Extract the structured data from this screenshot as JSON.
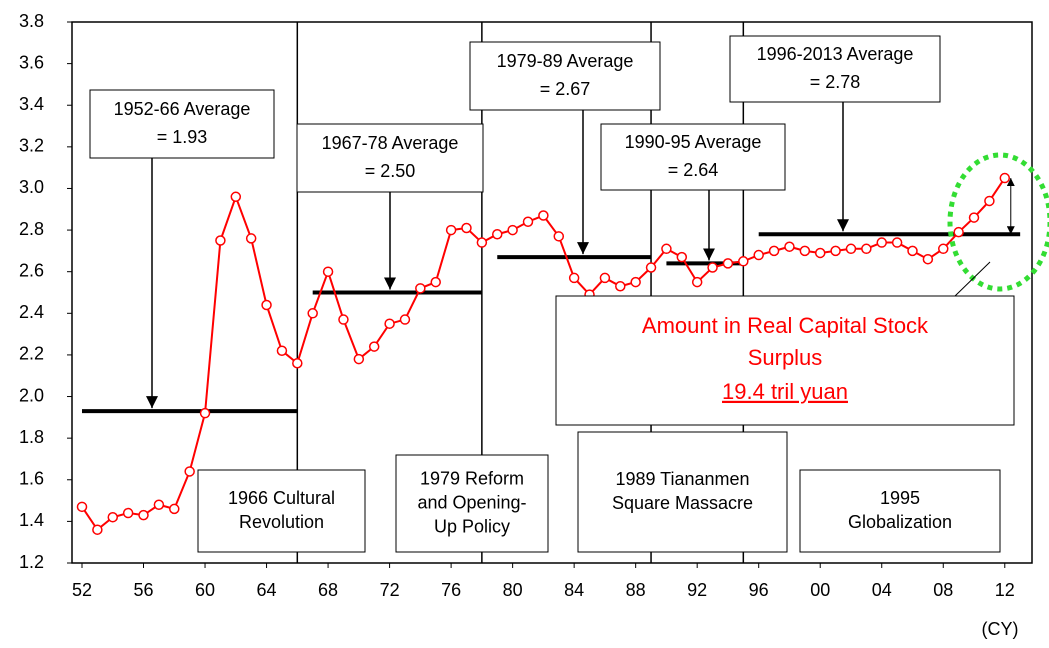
{
  "chart_data": {
    "type": "line",
    "x_unit_label": "(CY)",
    "x": [
      1952,
      1953,
      1954,
      1955,
      1956,
      1957,
      1958,
      1959,
      1960,
      1961,
      1962,
      1963,
      1964,
      1965,
      1966,
      1967,
      1968,
      1969,
      1970,
      1971,
      1972,
      1973,
      1974,
      1975,
      1976,
      1977,
      1978,
      1979,
      1980,
      1981,
      1982,
      1983,
      1984,
      1985,
      1986,
      1987,
      1988,
      1989,
      1990,
      1991,
      1992,
      1993,
      1994,
      1995,
      1996,
      1997,
      1998,
      1999,
      2000,
      2001,
      2002,
      2003,
      2004,
      2005,
      2006,
      2007,
      2008,
      2009,
      2010,
      2011,
      2012
    ],
    "series": [
      {
        "color": "#ff0000",
        "values": [
          1.47,
          1.36,
          1.42,
          1.44,
          1.43,
          1.48,
          1.46,
          1.64,
          1.92,
          2.75,
          2.96,
          2.76,
          2.44,
          2.22,
          2.16,
          2.4,
          2.6,
          2.37,
          2.18,
          2.24,
          2.35,
          2.37,
          2.52,
          2.55,
          2.8,
          2.81,
          2.74,
          2.78,
          2.8,
          2.84,
          2.87,
          2.77,
          2.57,
          2.49,
          2.57,
          2.53,
          2.55,
          2.62,
          2.71,
          2.67,
          2.55,
          2.62,
          2.64,
          2.65,
          2.68,
          2.7,
          2.72,
          2.7,
          2.69,
          2.7,
          2.71,
          2.71,
          2.74,
          2.74,
          2.7,
          2.66,
          2.71,
          2.79,
          2.86,
          2.94,
          3.05
        ]
      }
    ],
    "xlim": [
      1951.35,
      2013.77
    ],
    "xticks": [
      {
        "value": 1952,
        "label": "52"
      },
      {
        "value": 1956,
        "label": "56"
      },
      {
        "value": 1960,
        "label": "60"
      },
      {
        "value": 1964,
        "label": "64"
      },
      {
        "value": 1968,
        "label": "68"
      },
      {
        "value": 1972,
        "label": "72"
      },
      {
        "value": 1976,
        "label": "76"
      },
      {
        "value": 1980,
        "label": "80"
      },
      {
        "value": 1984,
        "label": "84"
      },
      {
        "value": 1988,
        "label": "88"
      },
      {
        "value": 1992,
        "label": "92"
      },
      {
        "value": 1996,
        "label": "96"
      },
      {
        "value": 2000,
        "label": "00"
      },
      {
        "value": 2004,
        "label": "04"
      },
      {
        "value": 2008,
        "label": "08"
      },
      {
        "value": 2012,
        "label": "12"
      }
    ],
    "ylim": [
      1.2,
      3.8
    ],
    "yticks": [
      {
        "value": 1.2,
        "label": "1.2"
      },
      {
        "value": 1.4,
        "label": "1.4"
      },
      {
        "value": 1.6,
        "label": "1.6"
      },
      {
        "value": 1.8,
        "label": "1.8"
      },
      {
        "value": 2.0,
        "label": "2.0"
      },
      {
        "value": 2.2,
        "label": "2.2"
      },
      {
        "value": 2.4,
        "label": "2.4"
      },
      {
        "value": 2.6,
        "label": "2.6"
      },
      {
        "value": 2.8,
        "label": "2.8"
      },
      {
        "value": 3.0,
        "label": "3.0"
      },
      {
        "value": 3.2,
        "label": "3.2"
      },
      {
        "value": 3.4,
        "label": "3.4"
      },
      {
        "value": 3.6,
        "label": "3.6"
      },
      {
        "value": 3.8,
        "label": "3.8"
      }
    ],
    "averages": [
      {
        "label": [
          "1952-66 Average",
          "= 1.93"
        ],
        "value": 1.93,
        "start": 1952,
        "end": 1966
      },
      {
        "label": [
          "1967-78 Average",
          "= 2.50"
        ],
        "value": 2.5,
        "start": 1967,
        "end": 1978
      },
      {
        "label": [
          "1979-89 Average",
          "= 2.67"
        ],
        "value": 2.67,
        "start": 1979,
        "end": 1989
      },
      {
        "label": [
          "1990-95 Average",
          "= 2.64"
        ],
        "value": 2.64,
        "start": 1990,
        "end": 1995
      },
      {
        "label": [
          "1996-2013 Average",
          "= 2.78"
        ],
        "value": 2.78,
        "start": 1996,
        "end": 2013
      }
    ],
    "events": [
      {
        "label": [
          "1966 Cultural",
          "Revolution"
        ]
      },
      {
        "label": [
          "1979 Reform",
          "and Opening-",
          "Up Policy"
        ]
      },
      {
        "label": [
          "1989 Tiananmen",
          "Square Massacre"
        ]
      },
      {
        "label": [
          "1995",
          "Globalization"
        ]
      }
    ],
    "annotation": {
      "lines": [
        "Amount in Real Capital Stock",
        "Surplus"
      ],
      "amount": "19.4 tril yuan"
    }
  }
}
